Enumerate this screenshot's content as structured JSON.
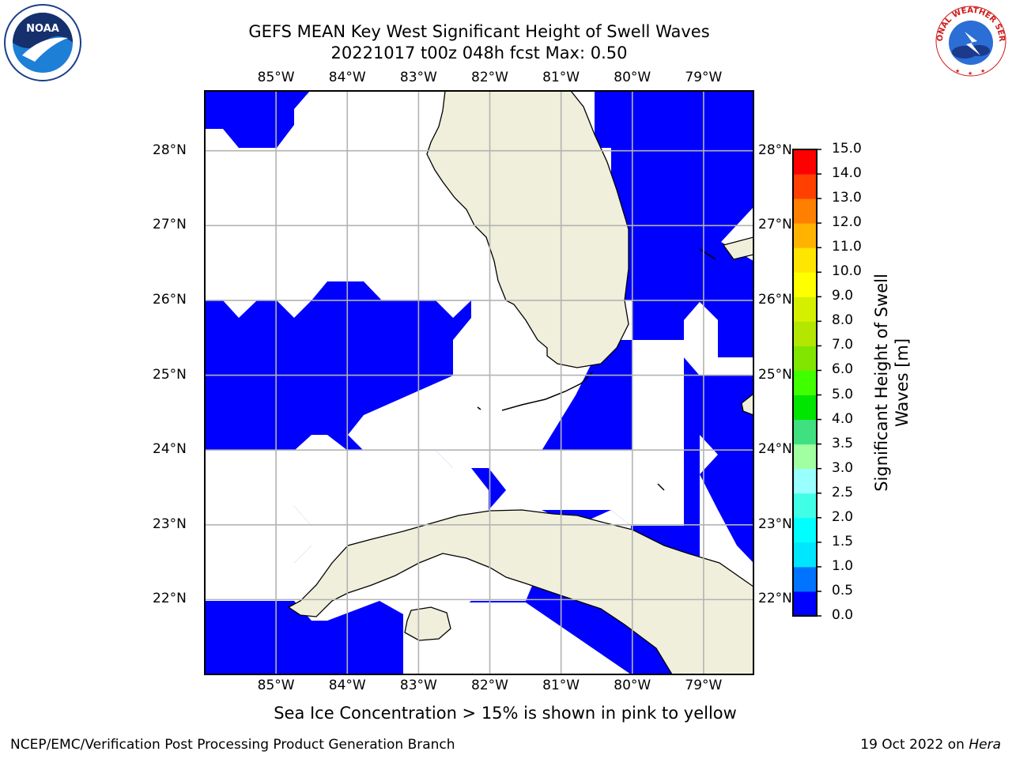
{
  "title": {
    "line1": "GEFS MEAN Key West Significant Height of Swell Waves",
    "line2": "20221017 t00z 048h fcst   Max: 0.50"
  },
  "map": {
    "lon_ticks": [
      "85°W",
      "84°W",
      "83°W",
      "82°W",
      "81°W",
      "80°W",
      "79°W"
    ],
    "lat_ticks": [
      "28°N",
      "27°N",
      "26°N",
      "25°N",
      "24°N",
      "23°N",
      "22°N"
    ],
    "lon_values": [
      -85,
      -84,
      -83,
      -82,
      -81,
      -80,
      -79
    ],
    "lat_values": [
      28,
      27,
      26,
      25,
      24,
      23,
      22
    ],
    "lon_range": [
      -86.0,
      -78.3
    ],
    "lat_range": [
      21.0,
      28.8
    ],
    "grid": true,
    "colors": {
      "swell_0_0p5": "#0000ff",
      "land": "#efefdc",
      "no_data": "#ffffff",
      "grid": "#b3b3b3"
    }
  },
  "colorbar": {
    "title_line1": "Significant Height of Swell",
    "title_line2": "Waves [m]",
    "ticks": [
      "0.0",
      "0.5",
      "1.0",
      "1.5",
      "2.0",
      "2.5",
      "3.0",
      "3.5",
      "4.0",
      "5.0",
      "6.0",
      "7.0",
      "8.0",
      "9.0",
      "10.0",
      "11.0",
      "12.0",
      "13.0",
      "14.0",
      "15.0"
    ],
    "colors": [
      "#0000ff",
      "#0073ff",
      "#00e6ff",
      "#00ffff",
      "#40ffe6",
      "#99ffff",
      "#a0ffa0",
      "#40e080",
      "#00e600",
      "#40ff00",
      "#80e600",
      "#b3e600",
      "#d4f000",
      "#ffff00",
      "#ffe600",
      "#ffb300",
      "#ff8000",
      "#ff4000",
      "#ff0000"
    ]
  },
  "note": "Sea Ice Concentration > 15% is shown in pink to yellow",
  "footer": {
    "left": "NCEP/EMC/Verification Post Processing Product Generation Branch",
    "right_prefix": "19 Oct 2022 on ",
    "right_host": "Hera"
  },
  "logos": {
    "left": "NOAA",
    "right_text": "NATIONAL WEATHER SERVICE"
  }
}
